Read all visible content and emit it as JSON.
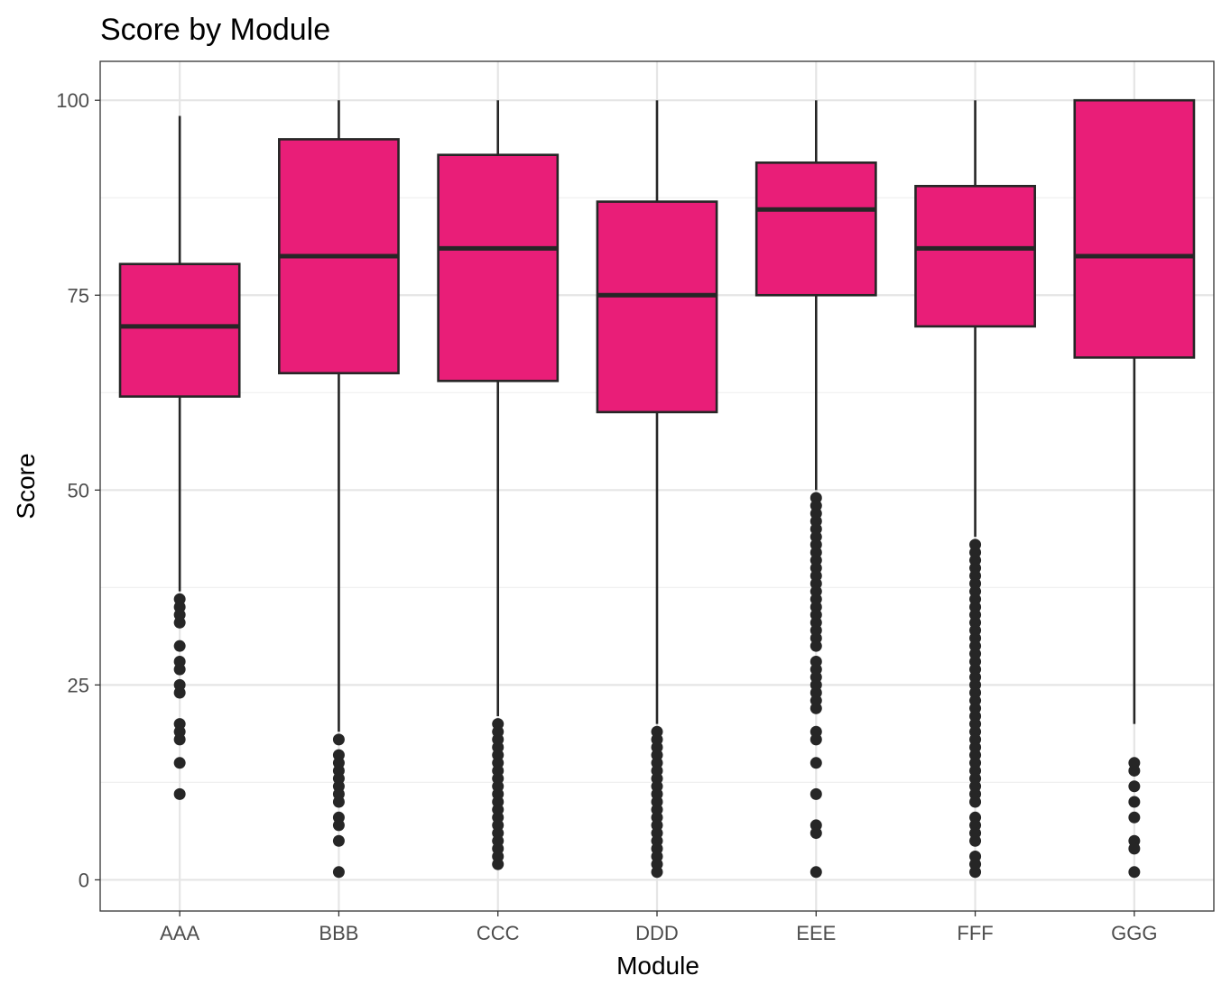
{
  "chart_data": {
    "type": "boxplot",
    "title": "Score by Module",
    "xlabel": "Module",
    "ylabel": "Score",
    "ylim": [
      -4,
      105
    ],
    "yticks": [
      0,
      25,
      50,
      75,
      100
    ],
    "grid": true,
    "legend": "none",
    "box_color": "#E91E78",
    "line_color": "#262626",
    "categories": [
      "AAA",
      "BBB",
      "CCC",
      "DDD",
      "EEE",
      "FFF",
      "GGG"
    ],
    "boxes": [
      {
        "category": "AAA",
        "whisker_low": 37,
        "q1": 62,
        "median": 71,
        "q3": 79,
        "whisker_high": 98,
        "outliers": [
          36,
          35,
          34,
          33,
          30,
          28,
          27,
          25,
          24,
          20,
          19,
          18,
          15,
          11
        ]
      },
      {
        "category": "BBB",
        "whisker_low": 19,
        "q1": 65,
        "median": 80,
        "q3": 95,
        "whisker_high": 100,
        "outliers": [
          18,
          16,
          15,
          14,
          13,
          12,
          11,
          10,
          8,
          7,
          5,
          1
        ]
      },
      {
        "category": "CCC",
        "whisker_low": 21,
        "q1": 64,
        "median": 81,
        "q3": 93,
        "whisker_high": 100,
        "outliers": [
          20,
          19,
          18,
          17,
          16,
          15,
          14,
          13,
          12,
          11,
          10,
          9,
          8,
          7,
          6,
          5,
          4,
          3,
          2
        ]
      },
      {
        "category": "DDD",
        "whisker_low": 20,
        "q1": 60,
        "median": 75,
        "q3": 87,
        "whisker_high": 100,
        "outliers": [
          19,
          18,
          17,
          16,
          15,
          14,
          13,
          12,
          11,
          10,
          9,
          8,
          7,
          6,
          5,
          4,
          3,
          2,
          1
        ]
      },
      {
        "category": "EEE",
        "whisker_low": 50,
        "q1": 75,
        "median": 86,
        "q3": 92,
        "whisker_high": 100,
        "outliers": [
          49,
          48,
          47,
          46,
          45,
          44,
          43,
          42,
          41,
          40,
          39,
          38,
          37,
          36,
          35,
          34,
          33,
          32,
          31,
          30,
          28,
          27,
          26,
          25,
          24,
          23,
          22,
          19,
          18,
          15,
          11,
          7,
          6,
          1
        ]
      },
      {
        "category": "FFF",
        "whisker_low": 44,
        "q1": 71,
        "median": 81,
        "q3": 89,
        "whisker_high": 100,
        "outliers": [
          43,
          42,
          41,
          40,
          39,
          38,
          37,
          36,
          35,
          34,
          33,
          32,
          31,
          30,
          29,
          28,
          27,
          26,
          25,
          24,
          23,
          22,
          21,
          20,
          19,
          18,
          17,
          16,
          15,
          14,
          13,
          12,
          11,
          10,
          8,
          7,
          6,
          5,
          3,
          2,
          1
        ]
      },
      {
        "category": "GGG",
        "whisker_low": 20,
        "q1": 67,
        "median": 80,
        "q3": 100,
        "whisker_high": 100,
        "outliers": [
          15,
          14,
          12,
          10,
          8,
          5,
          4,
          1
        ]
      }
    ]
  }
}
